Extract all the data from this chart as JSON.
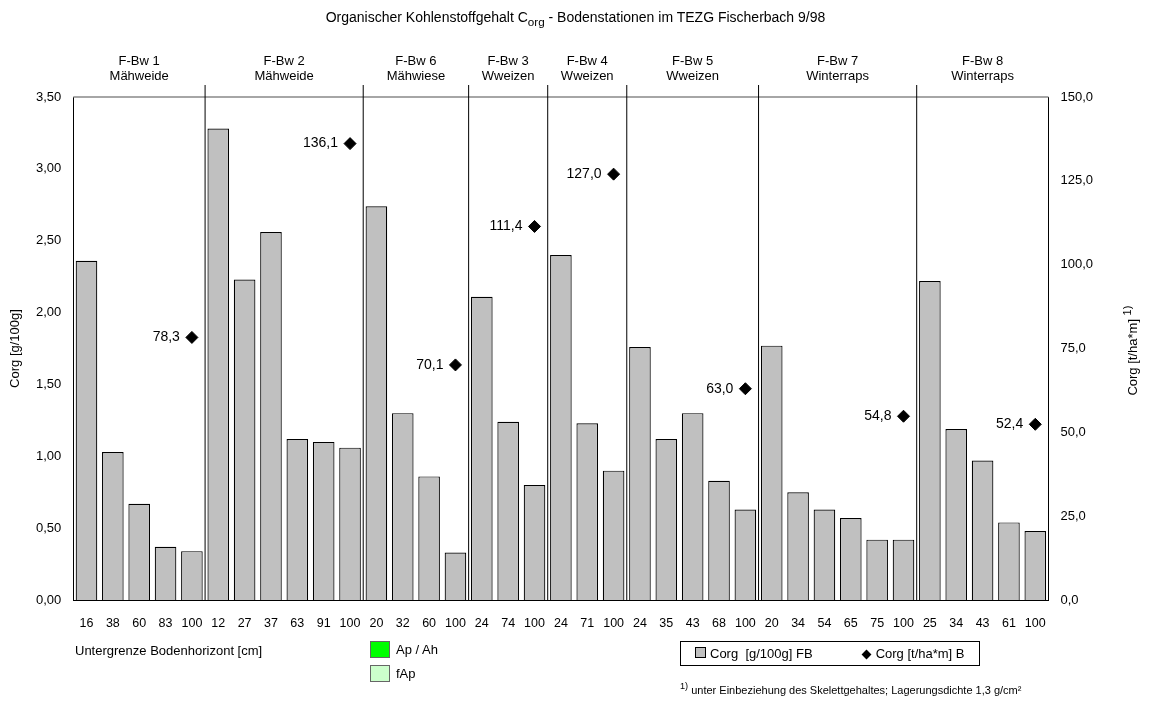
{
  "chart_data": {
    "type": "bar",
    "title": "Organischer Kohlenstoffgehalt C$_{org}$ - Bodenstationen im TEZG Fischerbach 9/98",
    "ylabel": "Corg [g/100g]",
    "y2label": "Corg [t/ha*m] $^{1)}$",
    "categories": [
      "16",
      "38",
      "60",
      "83",
      "100",
      "12",
      "27",
      "37",
      "63",
      "91",
      "100",
      "20",
      "32",
      "60",
      "100",
      "24",
      "74",
      "100",
      "24",
      "71",
      "100",
      "24",
      "35",
      "43",
      "68",
      "100",
      "20",
      "34",
      "54",
      "65",
      "75",
      "100",
      "25",
      "34",
      "43",
      "61",
      "100"
    ],
    "series": [
      {
        "name": "Corg  [g/100g] FB",
        "color": "#c0c0c0",
        "values": [
          2.36,
          1.03,
          0.67,
          0.37,
          0.34,
          3.28,
          2.23,
          2.56,
          1.12,
          1.1,
          1.06,
          2.74,
          1.3,
          0.86,
          0.33,
          2.11,
          1.24,
          0.8,
          2.4,
          1.23,
          0.9,
          1.76,
          1.12,
          1.3,
          0.83,
          0.63,
          1.77,
          0.75,
          0.63,
          0.57,
          0.42,
          0.42,
          2.22,
          1.19,
          0.97,
          0.54,
          0.48
        ]
      },
      {
        "name": "Corg [t/ha*m] B",
        "type": "scatter",
        "axis": "y2",
        "color": "#000000",
        "values": [
          null,
          null,
          null,
          null,
          78.3,
          null,
          null,
          null,
          null,
          null,
          136.1,
          null,
          null,
          null,
          70.1,
          null,
          null,
          111.4,
          null,
          null,
          127.0,
          null,
          null,
          null,
          null,
          63.0,
          null,
          null,
          null,
          null,
          null,
          54.8,
          null,
          null,
          null,
          null,
          52.4
        ],
        "value_labels": [
          null,
          null,
          null,
          null,
          "78,3",
          null,
          null,
          null,
          null,
          null,
          "136,1",
          null,
          null,
          null,
          "70,1",
          null,
          null,
          "111,4",
          null,
          null,
          "127,0",
          null,
          null,
          null,
          null,
          "63,0",
          null,
          null,
          null,
          null,
          null,
          "54,8",
          null,
          null,
          null,
          null,
          "52,4"
        ]
      }
    ],
    "ylim": [
      0,
      3.5
    ],
    "yticks": [
      {
        "value": 0,
        "label": "0,00"
      },
      {
        "value": 0.5,
        "label": "0,50"
      },
      {
        "value": 1,
        "label": "1,00"
      },
      {
        "value": 1.5,
        "label": "1,50"
      },
      {
        "value": 2,
        "label": "2,00"
      },
      {
        "value": 2.5,
        "label": "2,50"
      },
      {
        "value": 3,
        "label": "3,00"
      },
      {
        "value": 3.5,
        "label": "3,50"
      }
    ],
    "y2lim": [
      0,
      150
    ],
    "y2ticks": [
      {
        "value": 0,
        "label": "0,0"
      },
      {
        "value": 25,
        "label": "25,0"
      },
      {
        "value": 50,
        "label": "50,0"
      },
      {
        "value": 75,
        "label": "75,0"
      },
      {
        "value": 100,
        "label": "100,0"
      },
      {
        "value": 125,
        "label": "125,0"
      },
      {
        "value": 150,
        "label": "150,0"
      }
    ],
    "marker": "diamond",
    "grid": false,
    "legend": "bottom right",
    "annotations": [
      "F-Bw 1\nMähweide",
      "F-Bw 2\nMähweide",
      "F-Bw 6\nMähwiese",
      "F-Bw 3\nWweizen",
      "F-Bw 4\nWweizen",
      "F-Bw 5\nWweizen",
      "F-Bw 7\nWinterraps",
      "F-Bw 8\nWinterraps",
      "Untergrenze Bodenhorizont [cm]",
      "Ap / Ah",
      "fAp",
      "$^{1)}$ unter Einbeziehung des Skelettgehaltes; Lagerungsdichte 1,3 g/cm²"
    ]
  }
}
